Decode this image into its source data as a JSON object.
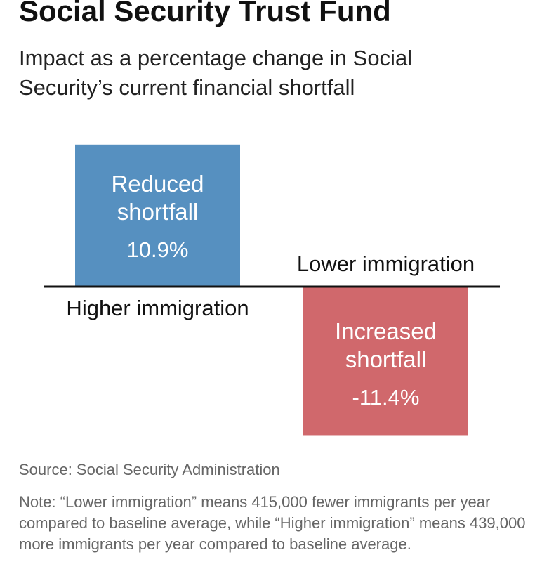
{
  "chart_data": {
    "type": "bar",
    "title": "Social Security Trust Fund",
    "subtitle": "Impact as a percentage change in Social Security’s current financial shortfall",
    "categories": [
      "Higher immigration",
      "Lower immigration"
    ],
    "values": [
      10.9,
      -11.4
    ],
    "value_labels": [
      "10.9%",
      "-11.4%"
    ],
    "bar_labels": [
      "Reduced shortfall",
      "Increased shortfall"
    ],
    "colors": [
      "#5690c0",
      "#d0686c"
    ],
    "source": "Source: Social Security Administration",
    "note": "Note: “Lower immigration” means 415,000 fewer immigrants per year compared to baseline average, while “Higher immigration” means 439,000 more immigrants per year compared to baseline average."
  }
}
